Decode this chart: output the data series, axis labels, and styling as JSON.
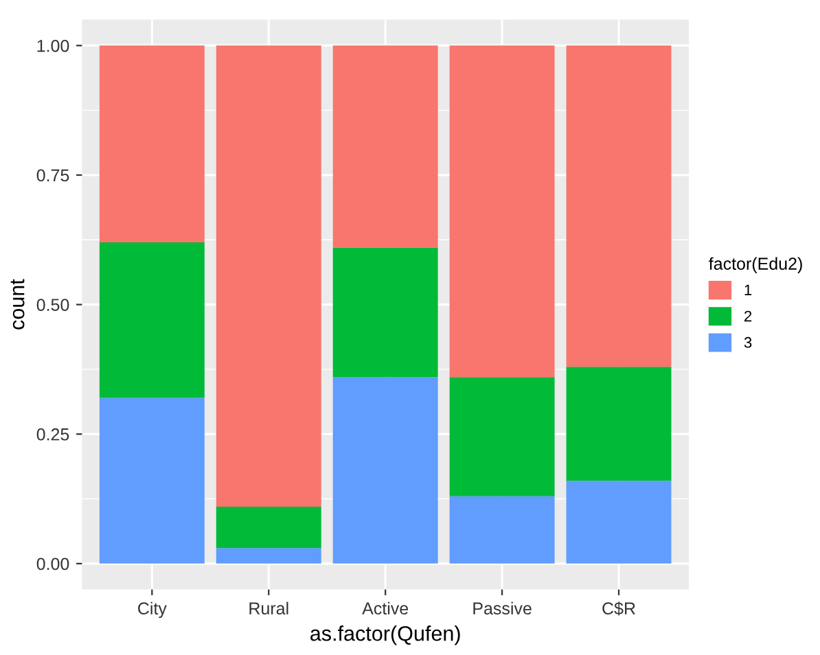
{
  "chart_data": {
    "type": "bar",
    "stacked": true,
    "xlabel": "as.factor(Qufen)",
    "ylabel": "count",
    "legend_title": "factor(Edu2)",
    "categories": [
      "City",
      "Rural",
      "Active",
      "Passive",
      "C$R"
    ],
    "series": [
      {
        "name": "3",
        "color": "#619cff",
        "values": [
          0.32,
          0.03,
          0.36,
          0.13,
          0.16
        ]
      },
      {
        "name": "2",
        "color": "#00ba38",
        "values": [
          0.3,
          0.08,
          0.25,
          0.23,
          0.22
        ]
      },
      {
        "name": "1",
        "color": "#f8766d",
        "values": [
          0.38,
          0.89,
          0.39,
          0.64,
          0.62
        ]
      }
    ],
    "ylim": [
      -0.05,
      1.05
    ],
    "yticks": [
      {
        "value": 0,
        "label": "0.00"
      },
      {
        "value": 0.25,
        "label": "0.25"
      },
      {
        "value": 0.5,
        "label": "0.50"
      },
      {
        "value": 0.75,
        "label": "0.75"
      },
      {
        "value": 1,
        "label": "1.00"
      }
    ],
    "grid": true,
    "legend": "right"
  }
}
